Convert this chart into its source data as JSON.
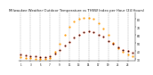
{
  "title": "Milwaukee Weather Outdoor Temperature vs THSW Index per Hour (24 Hours)",
  "title_fontsize": 2.8,
  "background_color": "#ffffff",
  "plot_bg_color": "#ffffff",
  "xlim": [
    0.5,
    24.5
  ],
  "ylim": [
    28,
    88
  ],
  "yticks": [
    30,
    40,
    50,
    60,
    70,
    80
  ],
  "ytick_labels": [
    "30",
    "40",
    "50",
    "60",
    "70",
    "80"
  ],
  "grid_color": "#888888",
  "hours": [
    1,
    2,
    3,
    4,
    5,
    6,
    7,
    8,
    9,
    10,
    11,
    12,
    13,
    14,
    15,
    16,
    17,
    18,
    19,
    20,
    21,
    22,
    23,
    24
  ],
  "temp": [
    36,
    35,
    34,
    34,
    33,
    33,
    34,
    37,
    42,
    47,
    52,
    57,
    61,
    64,
    65,
    64,
    61,
    58,
    53,
    49,
    45,
    42,
    40,
    38
  ],
  "thsw": [
    33,
    32,
    31,
    30,
    30,
    30,
    32,
    39,
    49,
    60,
    70,
    77,
    80,
    82,
    82,
    80,
    75,
    68,
    60,
    51,
    44,
    39,
    36,
    34
  ],
  "temp_color": "#cc2200",
  "thsw_color": "#ff9900",
  "dark_dot_color": "#111111",
  "dot_size": 2.5,
  "vgrid_positions": [
    1,
    3,
    5,
    7,
    9,
    11,
    13,
    15,
    17,
    19,
    21,
    23
  ],
  "xtick_positions": [
    1,
    3,
    5,
    7,
    9,
    11,
    13,
    15,
    17,
    19,
    21,
    23
  ],
  "xtick_labels": [
    "1",
    "3",
    "5",
    "7",
    "9",
    "11",
    "13",
    "15",
    "17",
    "19",
    "21",
    "23"
  ]
}
